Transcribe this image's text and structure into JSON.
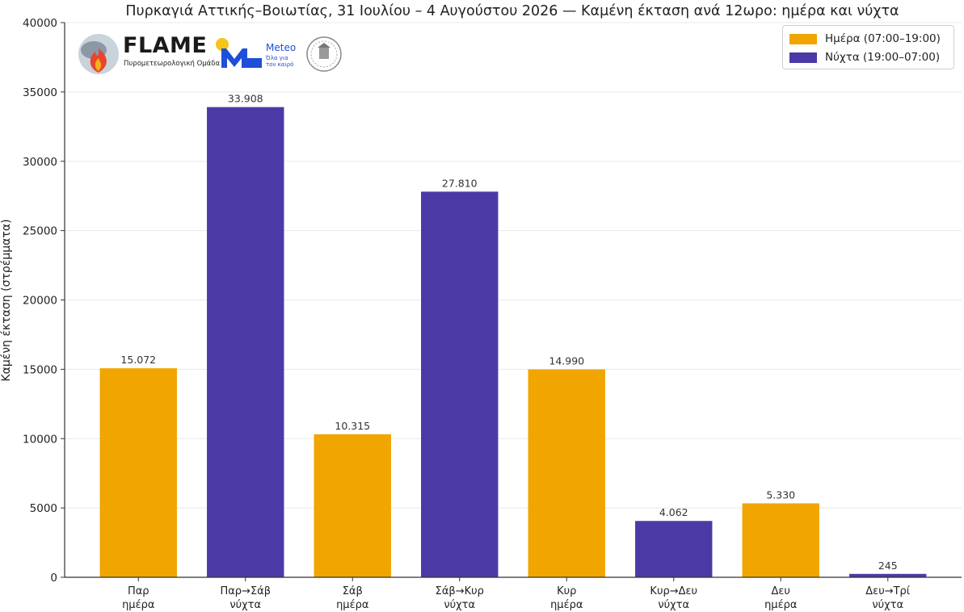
{
  "chart_data": {
    "type": "bar",
    "title": "Πυρκαγιά Αττικής–Βοιωτίας, 31 Ιουλίου – 4 Αυγούστου 2026 — Καμένη έκταση ανά 12ωρο: ημέρα και νύχτα",
    "xlabel": "",
    "ylabel": "Καμένη έκταση (στρέμματα)",
    "ylim": [
      0,
      40000
    ],
    "yticks": [
      0,
      5000,
      10000,
      15000,
      20000,
      25000,
      30000,
      35000,
      40000
    ],
    "grid": "horizontal",
    "legend_position": "top-right",
    "categories": [
      [
        "Παρ",
        "ημέρα"
      ],
      [
        "Παρ→Σάβ",
        "νύχτα"
      ],
      [
        "Σάβ",
        "ημέρα"
      ],
      [
        "Σάβ→Κυρ",
        "νύχτα"
      ],
      [
        "Κυρ",
        "ημέρα"
      ],
      [
        "Κυρ→Δευ",
        "νύχτα"
      ],
      [
        "Δευ",
        "ημέρα"
      ],
      [
        "Δευ→Τρί",
        "νύχτα"
      ]
    ],
    "values": [
      15072,
      33908,
      10315,
      27810,
      14990,
      4062,
      5330,
      245
    ],
    "value_labels": [
      "15.072",
      "33.908",
      "10.315",
      "27.810",
      "14.990",
      "4.062",
      "5.330",
      "245"
    ],
    "bar_series": [
      "day",
      "night",
      "day",
      "night",
      "day",
      "night",
      "day",
      "night"
    ],
    "series": [
      {
        "key": "day",
        "name": "Ημέρα (07:00–19:00)",
        "color": "#f0a500"
      },
      {
        "key": "night",
        "name": "Νύχτα (19:00–07:00)",
        "color": "#4b3aa6"
      }
    ]
  },
  "logos": {
    "flame": {
      "title": "FLAME",
      "subtitle": "Πυρομετεωρολογική Ομάδα"
    },
    "meteo": {
      "title": "Meteo",
      "subtitle": "Όλα για τον καιρό"
    },
    "seal_icon": "university-seal-icon"
  },
  "colors": {
    "day": "#f0a500",
    "night": "#4b3aa6",
    "axis": "#333333",
    "grid": "#e8e8e8"
  }
}
